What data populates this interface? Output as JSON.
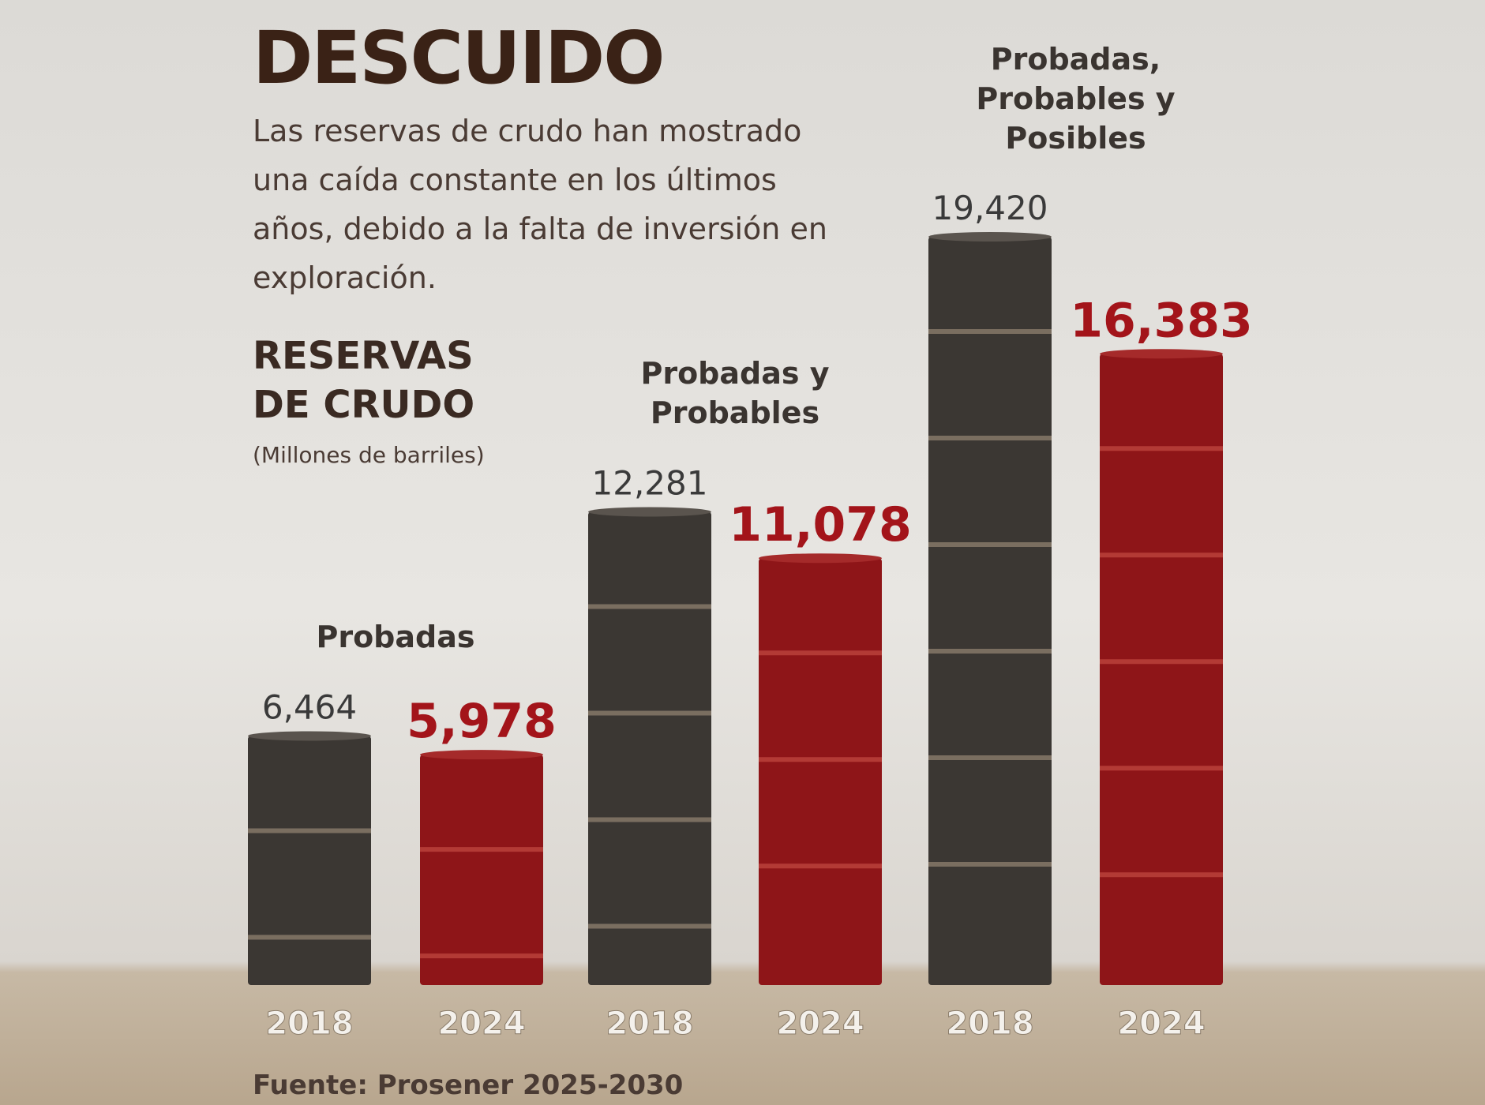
{
  "chart_data": {
    "type": "bar",
    "title": "DESCUIDO",
    "subtitle": "Las reservas de crudo han mostrado una caída constante en los últimos años, debido a la falta de inversión en exploración.",
    "ylabel": "RESERVAS DE CRUDO",
    "unit": "(Millones de barriles)",
    "colors": [
      "#3b3733",
      "#8e1518"
    ],
    "label_colors": [
      "#3a3a3a",
      "#a3141a"
    ],
    "groups": [
      {
        "name": "Probadas",
        "categories": [
          "2018",
          "2024"
        ],
        "values": [
          6464,
          5978
        ],
        "value_labels": [
          "6,464",
          "5,978"
        ]
      },
      {
        "name": "Probadas y Probables",
        "categories": [
          "2018",
          "2024"
        ],
        "values": [
          12281,
          11078
        ],
        "value_labels": [
          "12,281",
          "11,078"
        ]
      },
      {
        "name": "Probadas, Probables y Posibles",
        "categories": [
          "2018",
          "2024"
        ],
        "values": [
          19420,
          16383
        ],
        "value_labels": [
          "19,420",
          "16,383"
        ]
      }
    ],
    "source": "Fuente: Prosener 2025-2030"
  }
}
